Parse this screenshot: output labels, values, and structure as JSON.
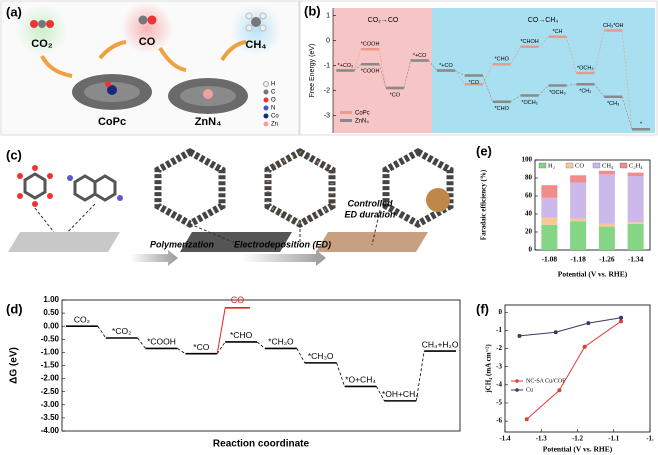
{
  "panels": {
    "a": {
      "label": "(a)",
      "molecules": [
        "CO₂",
        "CO",
        "CH₄"
      ],
      "catalysts": [
        "CoPc",
        "ZnN₄"
      ],
      "legend": [
        "H",
        "C",
        "O",
        "N",
        "Co",
        "Zn"
      ]
    },
    "c": {
      "label": "(c)",
      "steps": [
        "Polymerization",
        "Electrodeposition (ED)"
      ],
      "note": [
        "Controlled",
        "ED duration"
      ]
    }
  },
  "chart_data": [
    {
      "type": "energy",
      "label": "(b)",
      "ylabel": "Free Energy (eV)",
      "regions": [
        "CO₂→CO",
        "CO→CH₄"
      ],
      "ylim": [
        -3.7,
        1.3
      ],
      "yticks": [
        1,
        0,
        -1,
        -2,
        -3
      ],
      "legend": "lower left",
      "series": [
        {
          "name": "CoPc",
          "color": "#e89a8c",
          "values": [
            -1.2,
            -0.35,
            -1.9,
            -0.8,
            -1.2,
            -1.75,
            -0.95,
            -0.25,
            0.15,
            -1.3,
            0.4,
            -3.55
          ],
          "labels": [
            "*+CO₂",
            "*COOH",
            null,
            "*+CO",
            "*+CO",
            null,
            "*CHO",
            "*CHOH",
            "*CH",
            "*OCH₃",
            "CH₃*OH",
            "*"
          ]
        },
        {
          "name": "ZnN₄",
          "color": "#8a8a8a",
          "values": [
            -1.2,
            -0.95,
            -1.9,
            -0.8,
            -1.2,
            -1.4,
            -2.45,
            -2.2,
            -1.8,
            -1.75,
            -2.25,
            -3.55
          ],
          "labels": [
            null,
            "*COOH",
            "*CO",
            null,
            null,
            "*CO",
            "*CHO",
            "*OCH₂",
            "*OCH₃",
            "*CH₂",
            "*CH₃",
            null
          ]
        }
      ]
    },
    {
      "type": "energy",
      "label": "(d)",
      "ylabel": "ΔG (eV)",
      "xlabel": "Reaction coordinate",
      "categories": [
        "CO₂",
        "*CO₂",
        "*COOH",
        "*CO",
        "*CHO",
        "*CH₂O",
        "*CH₃O",
        "*O+CH₄",
        "*OH+CH₄",
        "CH₄+H₂O"
      ],
      "values": [
        0,
        -0.45,
        -0.85,
        -1.05,
        -0.6,
        -0.85,
        -1.4,
        -2.3,
        -2.85,
        -0.95
      ],
      "color": "#000000",
      "branch": {
        "label": "CO",
        "value": 0.7,
        "color": "#e8231f"
      },
      "ylim": [
        -4,
        1
      ],
      "yticks": [
        {
          "value": 1,
          "label": "1.00"
        },
        {
          "value": 0.5,
          "label": "0.50"
        },
        {
          "value": 0,
          "label": "0.00"
        },
        {
          "value": -0.5,
          "label": "-0.50"
        },
        {
          "value": -1,
          "label": "-1.00"
        },
        {
          "value": -1.5,
          "label": "-1.50"
        },
        {
          "value": -2,
          "label": "-2.00"
        },
        {
          "value": -2.5,
          "label": "-2.50"
        },
        {
          "value": -3,
          "label": "-3.00"
        },
        {
          "value": -3.5,
          "label": "-3.50"
        },
        {
          "value": -4,
          "label": "-4.00"
        }
      ]
    },
    {
      "type": "bar",
      "stacked": true,
      "label": "(e)",
      "ylabel": "Faradaic efficiency (%)",
      "xlabel": "Potential (V vs. RHE)",
      "categories": [
        "-1.08",
        "-1.18",
        "-1.26",
        "-1.34"
      ],
      "series": [
        {
          "name": "H₂",
          "color": "#86d486",
          "values": [
            28,
            32,
            26,
            29
          ]
        },
        {
          "name": "CO",
          "color": "#f8c995",
          "values": [
            8,
            3,
            3,
            2
          ]
        },
        {
          "name": "CH₄",
          "color": "#cdb8ec",
          "values": [
            22,
            40,
            55,
            51
          ]
        },
        {
          "name": "C₂H₄",
          "color": "#f28b8b",
          "values": [
            14,
            8,
            4,
            4
          ]
        }
      ],
      "ylim": [
        0,
        100
      ],
      "yticks": [
        0,
        20,
        40,
        60,
        80,
        100
      ],
      "legend": "top"
    },
    {
      "type": "line",
      "label": "(f)",
      "ylabel": "jCH₄ (mA cm⁻²)",
      "xlabel": "Potential (V vs. RHE)",
      "xlim": [
        -1.4,
        -1.0
      ],
      "xticks": [
        -1.4,
        -1.3,
        -1.2,
        -1.1,
        {
          "value": -1.0,
          "label": "-1."
        }
      ],
      "ylim": [
        -6.6,
        0.4
      ],
      "yticks": [
        0,
        -1,
        -2,
        -3,
        -4,
        -5,
        -6
      ],
      "legend": "left",
      "series": [
        {
          "name": "NC-SA Cu/COF",
          "color": "#e23b3b",
          "x": [
            -1.34,
            -1.25,
            -1.18,
            -1.08
          ],
          "values": [
            -5.9,
            -4.3,
            -1.9,
            -0.5
          ]
        },
        {
          "name": "Cu",
          "color": "#3a3a66",
          "x": [
            -1.36,
            -1.26,
            -1.17,
            -1.08
          ],
          "values": [
            -1.3,
            -1.1,
            -0.6,
            -0.3
          ]
        }
      ]
    }
  ]
}
